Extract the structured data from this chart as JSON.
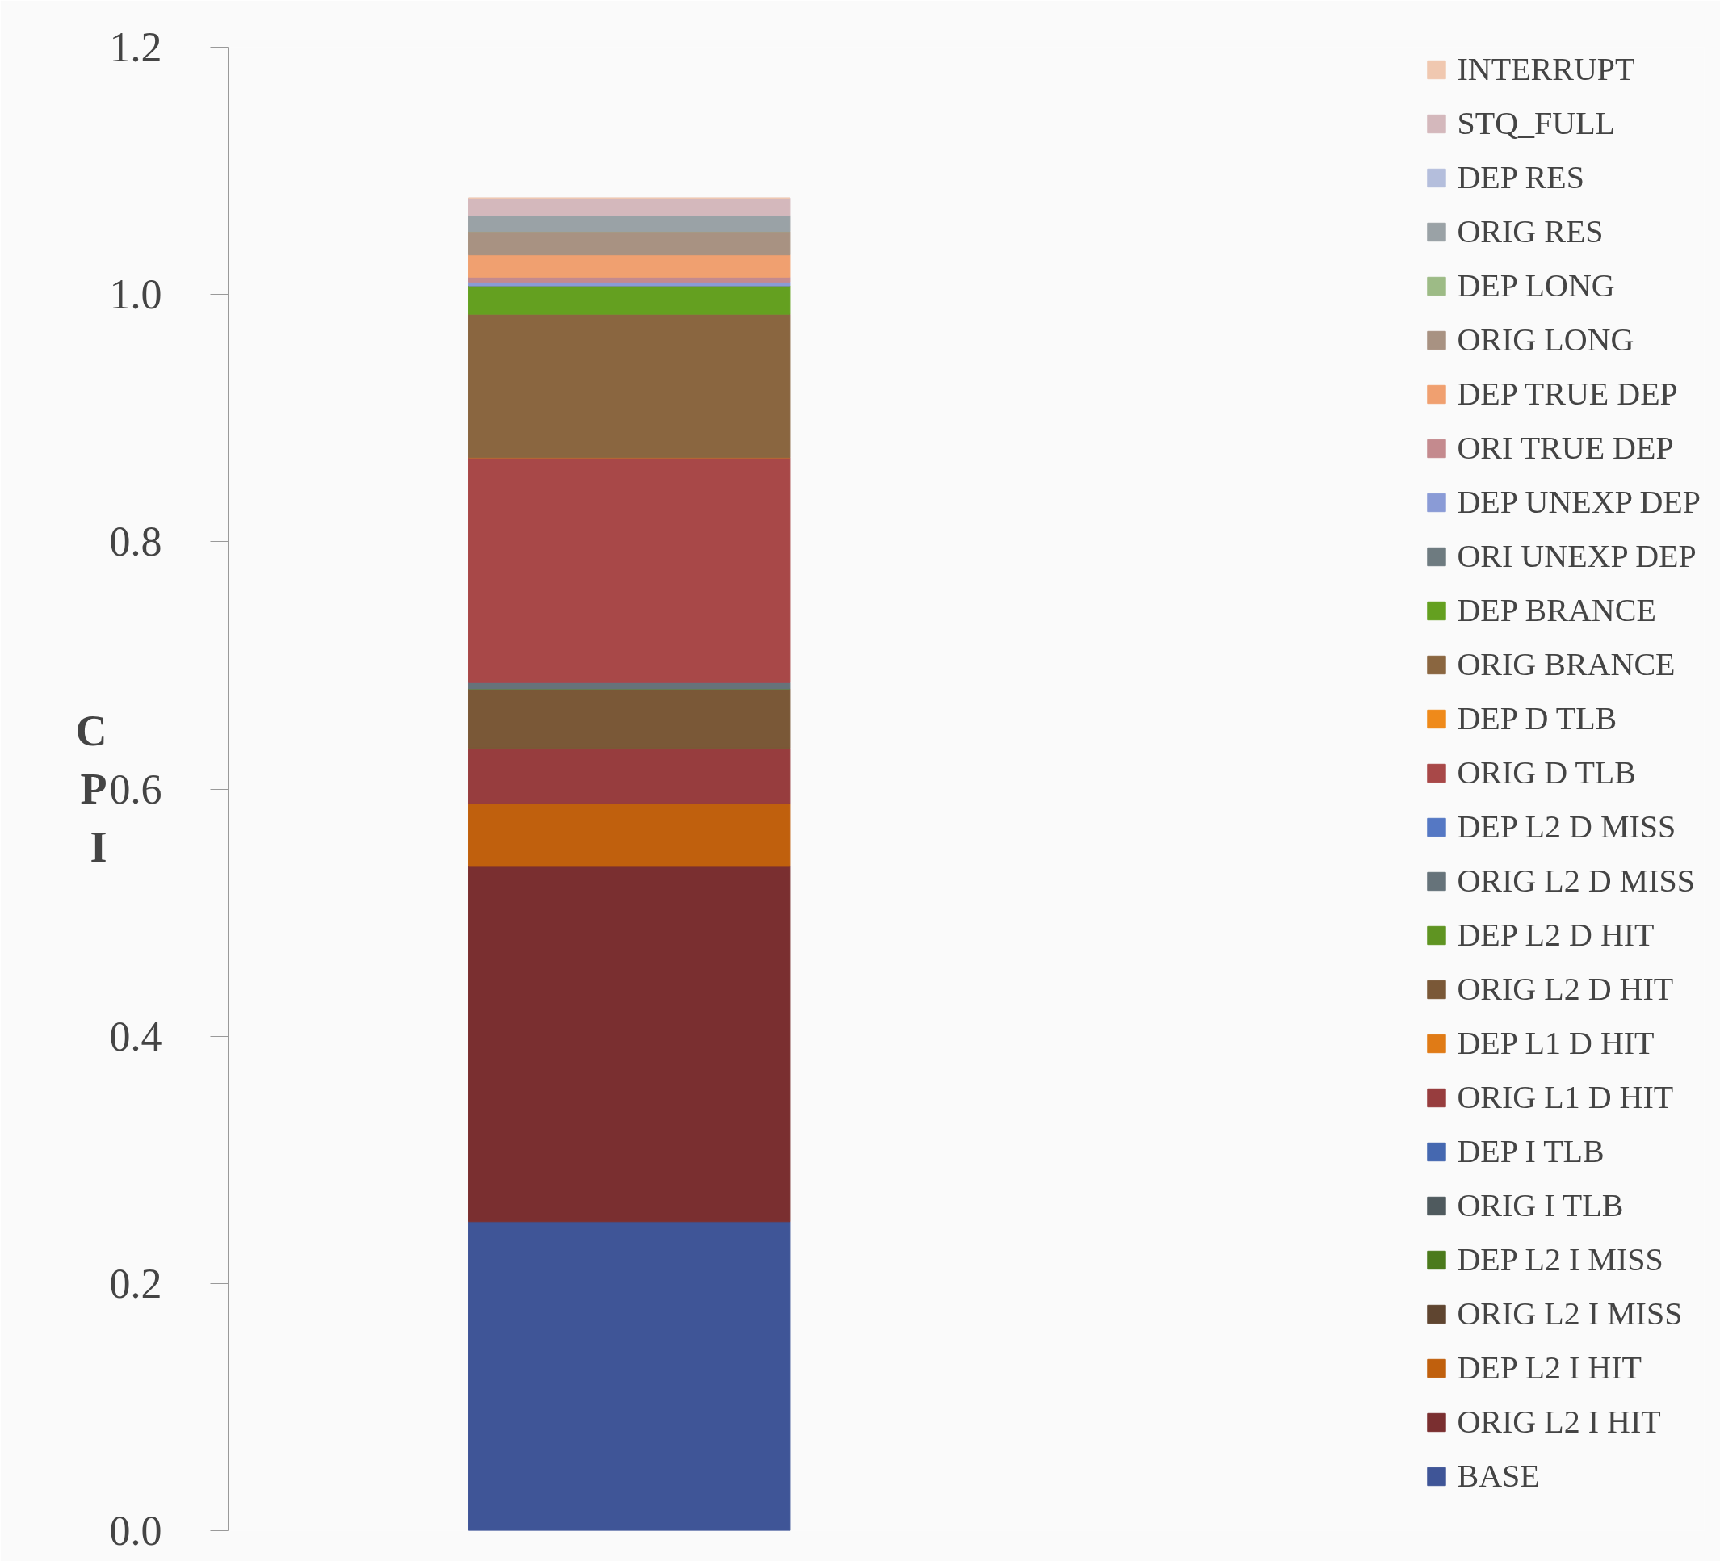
{
  "chart_data": {
    "type": "bar",
    "stacked": true,
    "ylabel": "CPI",
    "categories": [
      null
    ],
    "ylim": [
      0,
      1.2
    ],
    "yticks": [
      {
        "value": 0,
        "label": "0.0"
      },
      {
        "value": 0.2,
        "label": "0.2"
      },
      {
        "value": 0.4,
        "label": "0.4"
      },
      {
        "value": 0.6,
        "label": "0.6"
      },
      {
        "value": 0.8,
        "label": "0.8"
      },
      {
        "value": 1.0,
        "label": "1.0"
      },
      {
        "value": 1.2,
        "label": "1.2"
      }
    ],
    "grid": false,
    "legend": "right",
    "series": [
      {
        "name": "BASE",
        "color": "#3f5597",
        "values": [
          0.25
        ]
      },
      {
        "name": "ORIG L2 I HIT",
        "color": "#7a2f30",
        "values": [
          0.288
        ]
      },
      {
        "name": "DEP L2 I HIT",
        "color": "#c0600d",
        "values": [
          0.05
        ]
      },
      {
        "name": "ORIG L2 I MISS",
        "color": "#5f4530",
        "values": [
          0
        ]
      },
      {
        "name": "DEP L2 I MISS",
        "color": "#4b7a1c",
        "values": [
          0
        ]
      },
      {
        "name": "ORIG I TLB",
        "color": "#4f5a5e",
        "values": [
          0
        ]
      },
      {
        "name": "DEP I TLB",
        "color": "#4568b0",
        "values": [
          0
        ]
      },
      {
        "name": "ORIG L1 D HIT",
        "color": "#973d3e",
        "values": [
          0.045
        ]
      },
      {
        "name": "DEP L1 D HIT",
        "color": "#e07b16",
        "values": [
          0
        ]
      },
      {
        "name": "ORIG L2 D HIT",
        "color": "#7a5837",
        "values": [
          0.048
        ]
      },
      {
        "name": "DEP L2 D HIT",
        "color": "#5f9422",
        "values": [
          0
        ]
      },
      {
        "name": "ORIG L2 D MISS",
        "color": "#66737a",
        "values": [
          0.005
        ]
      },
      {
        "name": "DEP L2 D MISS",
        "color": "#5578c4",
        "values": [
          0
        ]
      },
      {
        "name": "ORIG D TLB",
        "color": "#a84848",
        "values": [
          0.182
        ]
      },
      {
        "name": "DEP D TLB",
        "color": "#ef8a1a",
        "values": [
          0
        ]
      },
      {
        "name": "ORIG BRANCE",
        "color": "#8a6640",
        "values": [
          0.116
        ]
      },
      {
        "name": "DEP BRANCE",
        "color": "#64a020",
        "values": [
          0.023
        ]
      },
      {
        "name": "ORI UNEXP DEP",
        "color": "#6e7b80",
        "values": [
          0
        ]
      },
      {
        "name": "DEP UNEXP DEP",
        "color": "#8a9bd6",
        "values": [
          0.003
        ]
      },
      {
        "name": "ORI TRUE DEP",
        "color": "#c48a8e",
        "values": [
          0.004
        ]
      },
      {
        "name": "DEP TRUE DEP",
        "color": "#f0a070",
        "values": [
          0.018
        ]
      },
      {
        "name": "ORIG LONG",
        "color": "#a89282",
        "values": [
          0.019
        ]
      },
      {
        "name": "DEP LONG",
        "color": "#9dbb86",
        "values": [
          0
        ]
      },
      {
        "name": "ORIG RES",
        "color": "#9aa2a6",
        "values": [
          0.013
        ]
      },
      {
        "name": "DEP RES",
        "color": "#b4bedc",
        "values": [
          0
        ]
      },
      {
        "name": "STQ_FULL",
        "color": "#d4b8bc",
        "values": [
          0.014
        ]
      },
      {
        "name": "INTERRUPT",
        "color": "#f0c8b0",
        "values": [
          0
        ]
      }
    ]
  }
}
